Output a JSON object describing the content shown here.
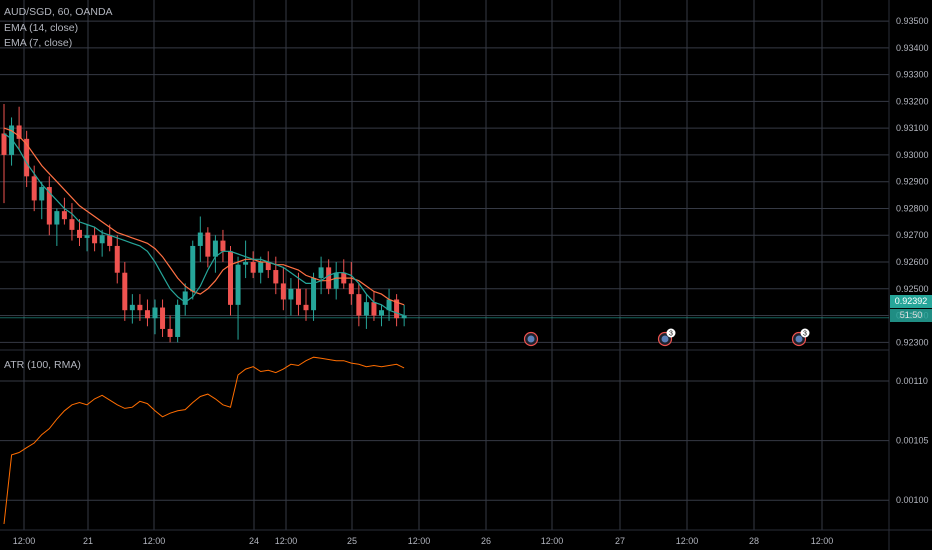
{
  "legend": {
    "symbol": "AUD/SGD, 60, OANDA",
    "ema14": "EMA (14, close)",
    "ema7": "EMA (7, close)",
    "atr": "ATR (100, RMA)"
  },
  "last_price": "0.92392",
  "countdown": "51:50",
  "colors": {
    "up": "#26a69a",
    "down": "#ef5350",
    "ema14": "#ff7043",
    "ema7": "#26a69a",
    "atr": "#ff6d00",
    "grid": "#363a45",
    "last_price_line": "#26a69a"
  },
  "chart_data": [
    {
      "type": "candlestick",
      "title": "AUD/SGD, 60, OANDA",
      "grid": true,
      "ylim": [
        0.9229,
        0.9356
      ],
      "y_ticks": [
        "0.93500",
        "0.93400",
        "0.93300",
        "0.93200",
        "0.93100",
        "0.93000",
        "0.92900",
        "0.92800",
        "0.92700",
        "0.92600",
        "0.92500",
        "0.92400",
        "0.92300"
      ],
      "x_ticks": [
        "12:00",
        "21",
        "12:00",
        "24",
        "12:00",
        "25",
        "12:00",
        "26",
        "12:00",
        "27",
        "12:00",
        "28",
        "12:00"
      ],
      "series": [
        {
          "name": "EMA (14, close)",
          "type": "line",
          "values": [
            0.931,
            0.9309,
            0.9307,
            0.9304,
            0.93,
            0.9296,
            0.9293,
            0.929,
            0.9287,
            0.9284,
            0.9281,
            0.9279,
            0.9277,
            0.9275,
            0.9273,
            0.9271,
            0.927,
            0.9269,
            0.9268,
            0.9267,
            0.9265,
            0.9262,
            0.9258,
            0.9254,
            0.9251,
            0.9249,
            0.9248,
            0.925,
            0.9253,
            0.9257,
            0.9259,
            0.926,
            0.9261,
            0.9261,
            0.926,
            0.926,
            0.9259,
            0.9259,
            0.9258,
            0.9257,
            0.9255,
            0.9254,
            0.9253,
            0.9253,
            0.9254,
            0.9254,
            0.9254,
            0.9253,
            0.9251,
            0.9249,
            0.9248,
            0.9246,
            0.9245,
            0.9244
          ]
        },
        {
          "name": "EMA (7, close)",
          "type": "line",
          "values": [
            0.9308,
            0.9306,
            0.9302,
            0.9297,
            0.9293,
            0.9289,
            0.9286,
            0.9283,
            0.928,
            0.9278,
            0.9275,
            0.9274,
            0.9273,
            0.9271,
            0.927,
            0.9269,
            0.9268,
            0.9267,
            0.9266,
            0.9264,
            0.926,
            0.9255,
            0.925,
            0.9247,
            0.9245,
            0.9247,
            0.9251,
            0.9257,
            0.9262,
            0.9264,
            0.9264,
            0.9263,
            0.9262,
            0.9261,
            0.9261,
            0.926,
            0.9259,
            0.9258,
            0.9256,
            0.9254,
            0.9252,
            0.9252,
            0.9253,
            0.9255,
            0.9256,
            0.9256,
            0.9255,
            0.9252,
            0.9248,
            0.9245,
            0.9244,
            0.9242,
            0.9241,
            0.924
          ]
        },
        {
          "name": "candles",
          "type": "ohlc",
          "values": [
            [
              0.9308,
              0.9319,
              0.9282,
              0.93
            ],
            [
              0.93,
              0.9314,
              0.9296,
              0.9311
            ],
            [
              0.9311,
              0.9318,
              0.9302,
              0.9306
            ],
            [
              0.9306,
              0.9309,
              0.9288,
              0.9292
            ],
            [
              0.9292,
              0.9296,
              0.9279,
              0.9283
            ],
            [
              0.9283,
              0.929,
              0.9276,
              0.9288
            ],
            [
              0.9288,
              0.9292,
              0.927,
              0.9274
            ],
            [
              0.9274,
              0.928,
              0.9266,
              0.9279
            ],
            [
              0.9279,
              0.9284,
              0.9274,
              0.9276
            ],
            [
              0.9276,
              0.9282,
              0.9268,
              0.9272
            ],
            [
              0.9272,
              0.9276,
              0.9266,
              0.9269
            ],
            [
              0.9269,
              0.9274,
              0.9264,
              0.927
            ],
            [
              0.927,
              0.9273,
              0.9264,
              0.9267
            ],
            [
              0.9267,
              0.9272,
              0.9262,
              0.927
            ],
            [
              0.927,
              0.9274,
              0.9264,
              0.9266
            ],
            [
              0.9266,
              0.927,
              0.9252,
              0.9256
            ],
            [
              0.9256,
              0.926,
              0.9238,
              0.9242
            ],
            [
              0.9242,
              0.9248,
              0.9237,
              0.9244
            ],
            [
              0.9244,
              0.9248,
              0.9238,
              0.9242
            ],
            [
              0.9242,
              0.9246,
              0.9236,
              0.9239
            ],
            [
              0.9239,
              0.9246,
              0.9233,
              0.9243
            ],
            [
              0.9243,
              0.9246,
              0.9232,
              0.9235
            ],
            [
              0.9235,
              0.924,
              0.923,
              0.9232
            ],
            [
              0.9232,
              0.9246,
              0.923,
              0.9244
            ],
            [
              0.9244,
              0.9252,
              0.924,
              0.9249
            ],
            [
              0.9249,
              0.9268,
              0.9246,
              0.9266
            ],
            [
              0.9266,
              0.9277,
              0.926,
              0.9271
            ],
            [
              0.9271,
              0.9273,
              0.9258,
              0.9262
            ],
            [
              0.9262,
              0.927,
              0.9256,
              0.9268
            ],
            [
              0.9268,
              0.9272,
              0.926,
              0.9264
            ],
            [
              0.9264,
              0.9266,
              0.924,
              0.9244
            ],
            [
              0.9244,
              0.9262,
              0.9231,
              0.9259
            ],
            [
              0.9259,
              0.9268,
              0.9254,
              0.926
            ],
            [
              0.926,
              0.9264,
              0.9254,
              0.9256
            ],
            [
              0.9256,
              0.9262,
              0.9252,
              0.926
            ],
            [
              0.926,
              0.9264,
              0.9254,
              0.9257
            ],
            [
              0.9257,
              0.9262,
              0.9248,
              0.9252
            ],
            [
              0.9252,
              0.9258,
              0.9242,
              0.9246
            ],
            [
              0.9246,
              0.9254,
              0.924,
              0.925
            ],
            [
              0.925,
              0.9256,
              0.924,
              0.9244
            ],
            [
              0.9244,
              0.925,
              0.9238,
              0.9242
            ],
            [
              0.9242,
              0.9256,
              0.9238,
              0.9254
            ],
            [
              0.9254,
              0.9262,
              0.9248,
              0.9258
            ],
            [
              0.9258,
              0.9261,
              0.9248,
              0.925
            ],
            [
              0.925,
              0.926,
              0.9246,
              0.9256
            ],
            [
              0.9256,
              0.9261,
              0.925,
              0.9252
            ],
            [
              0.9252,
              0.926,
              0.9244,
              0.9248
            ],
            [
              0.9248,
              0.9252,
              0.9236,
              0.924
            ],
            [
              0.924,
              0.9248,
              0.9235,
              0.9245
            ],
            [
              0.9245,
              0.9249,
              0.9238,
              0.924
            ],
            [
              0.924,
              0.9244,
              0.9236,
              0.9242
            ],
            [
              0.9242,
              0.925,
              0.9238,
              0.9246
            ],
            [
              0.9246,
              0.9248,
              0.9236,
              0.9239
            ],
            [
              0.9239,
              0.9244,
              0.9236,
              0.924
            ]
          ]
        }
      ]
    },
    {
      "type": "line",
      "title": "ATR (100, RMA)",
      "ylim": [
        0.000975,
        0.001126
      ],
      "y_ticks": [
        "0.00110",
        "0.00105",
        "0.00100"
      ],
      "series": [
        {
          "name": "ATR (100, RMA)",
          "values": [
            0.00098,
            0.001038,
            0.00104,
            0.001044,
            0.001048,
            0.001055,
            0.00106,
            0.001068,
            0.001075,
            0.00108,
            0.001082,
            0.00108,
            0.001085,
            0.001088,
            0.001084,
            0.00108,
            0.001077,
            0.001078,
            0.001083,
            0.001081,
            0.001075,
            0.00107,
            0.001073,
            0.001075,
            0.001076,
            0.001082,
            0.001087,
            0.001089,
            0.001085,
            0.00108,
            0.001078,
            0.001105,
            0.00111,
            0.001112,
            0.001108,
            0.001109,
            0.001107,
            0.00111,
            0.001114,
            0.001113,
            0.001117,
            0.00112,
            0.001119,
            0.001118,
            0.001117,
            0.001117,
            0.001115,
            0.001114,
            0.001112,
            0.001113,
            0.001112,
            0.001113,
            0.001114,
            0.001111
          ]
        }
      ]
    }
  ],
  "events": [
    {
      "badge": ""
    },
    {
      "badge": "3"
    },
    {
      "badge": "3"
    }
  ]
}
